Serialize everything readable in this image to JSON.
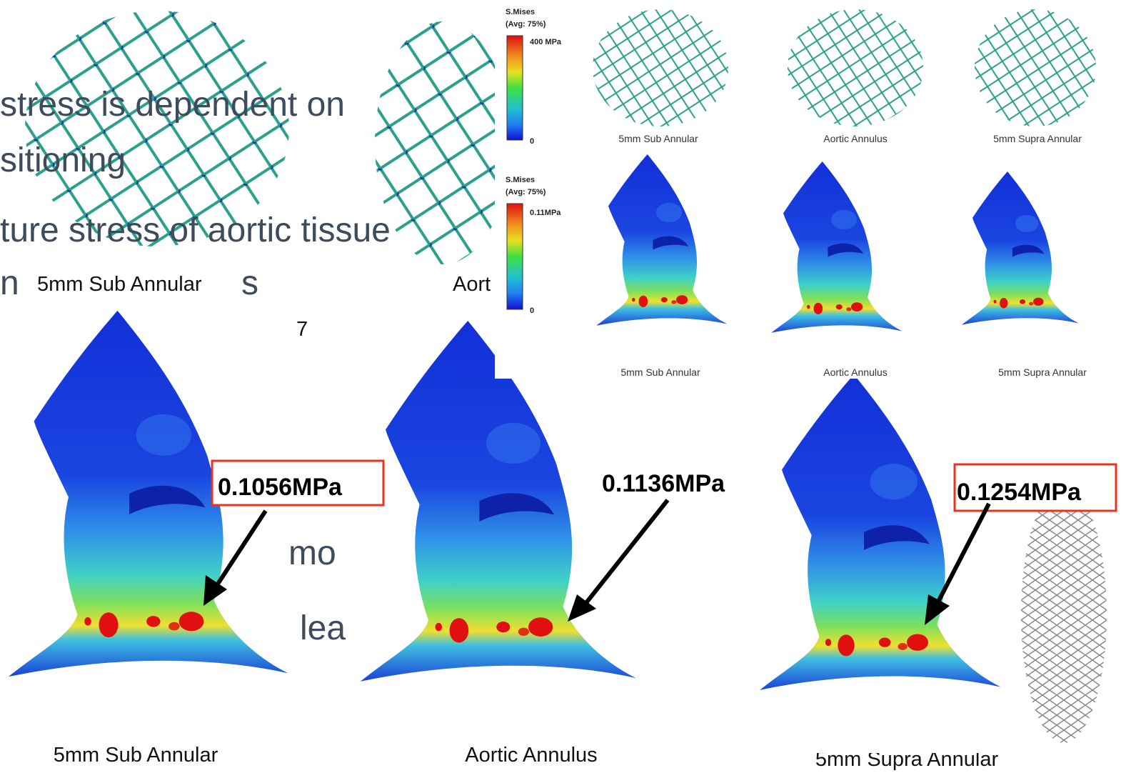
{
  "slide": {
    "bullets": [
      "stress is dependent on",
      "sitioning",
      "ture stress of aortic tissue",
      "n"
    ],
    "top_caption": "5mm Sub Annular",
    "fragments": [
      "s",
      "Aort",
      "7",
      "mo",
      "lea"
    ]
  },
  "panels": [
    {
      "value": "0.1056MPa",
      "caption": "5mm Sub Annular"
    },
    {
      "value": "0.1136MPa",
      "caption": "Aortic Annulus"
    },
    {
      "value": "0.1254MPa",
      "caption": "5mm Supra Annular"
    }
  ],
  "inset": {
    "legends": [
      {
        "title": "S.Mises",
        "subtitle": "(Avg: 75%)",
        "max": "400 MPa",
        "min": "0"
      },
      {
        "title": "S.Mises",
        "subtitle": "(Avg: 75%)",
        "max": "0.11MPa",
        "min": "0"
      }
    ],
    "stent_captions": [
      "5mm Sub Annular",
      "Aortic Annulus",
      "5mm Supra Annular"
    ],
    "aorta_captions": [
      "5mm Sub Annular",
      "Aortic Annulus",
      "5mm Supra Annular"
    ]
  }
}
